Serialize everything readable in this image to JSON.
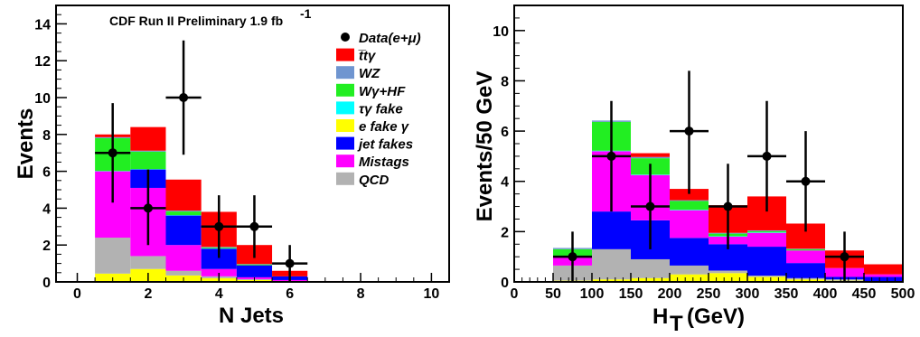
{
  "chart_data": [
    {
      "type": "bar",
      "stacked": true,
      "title": "CDF Run II Preliminary 1.9 fb",
      "title_superscript": "-1",
      "xlabel": "N Jets",
      "ylabel": "Events",
      "xlim": [
        -0.6,
        10.5
      ],
      "ylim": [
        0,
        15
      ],
      "xticks": [
        "0",
        "2",
        "4",
        "6",
        "8",
        "10"
      ],
      "yticks": [
        "0",
        "2",
        "4",
        "6",
        "8",
        "10",
        "12",
        "14"
      ],
      "bin_edges": [
        0.5,
        1.5,
        2.5,
        3.5,
        4.5,
        5.5,
        6.5,
        7.5,
        8.5,
        9.5,
        10.5
      ],
      "legend_position": "top-right",
      "legend_colors": [
        "#000000",
        "#ff0000",
        "#6f95d0",
        "#22ee22",
        "#00ffff",
        "#ffff00",
        "#0000ff",
        "#ff00ff",
        "#b2b2b2"
      ],
      "legend": [
        "Data(e+μ)",
        "t̅tγ",
        "WZ",
        "Wγ+HF",
        "τγ fake",
        "e fake γ",
        "jet fakes",
        "Mistags",
        "QCD"
      ],
      "series": [
        {
          "name": "e fake γ",
          "color": "#ffff00",
          "values": [
            0.45,
            0.7,
            0.35,
            0.2,
            0.1,
            0.05,
            0,
            0,
            0,
            0
          ]
        },
        {
          "name": "QCD",
          "color": "#b2b2b2",
          "values": [
            1.95,
            0.7,
            0.25,
            0.1,
            0.05,
            0.0,
            0,
            0,
            0,
            0
          ]
        },
        {
          "name": "Mistags",
          "color": "#ff00ff",
          "values": [
            3.6,
            3.7,
            1.4,
            0.4,
            0.1,
            0.05,
            0,
            0,
            0,
            0
          ]
        },
        {
          "name": "jet fakes",
          "color": "#0000ff",
          "values": [
            0,
            1.0,
            1.6,
            1.1,
            0.65,
            0.2,
            0,
            0,
            0,
            0
          ]
        },
        {
          "name": "τγ fake",
          "color": "#00ffff",
          "values": [
            0.02,
            0.02,
            0.02,
            0.02,
            0.0,
            0.0,
            0,
            0,
            0,
            0
          ]
        },
        {
          "name": "Wγ+HF",
          "color": "#22ee22",
          "values": [
            1.78,
            0.95,
            0.2,
            0.05,
            0.05,
            0.0,
            0,
            0,
            0,
            0
          ]
        },
        {
          "name": "WZ",
          "color": "#6f95d0",
          "values": [
            0.05,
            0.05,
            0.05,
            0.03,
            0.02,
            0.0,
            0,
            0,
            0,
            0
          ]
        },
        {
          "name": "t̅tγ",
          "color": "#ff0000",
          "values": [
            0.15,
            1.28,
            1.68,
            1.9,
            1.03,
            0.3,
            0.05,
            0.03,
            0.02,
            0.01
          ]
        }
      ],
      "data_points": [
        {
          "x": 1,
          "y": 7,
          "ylo": 4.3,
          "yhi": 9.7
        },
        {
          "x": 2,
          "y": 4,
          "ylo": 2.0,
          "yhi": 6.1
        },
        {
          "x": 3,
          "y": 10,
          "ylo": 6.9,
          "yhi": 13.1
        },
        {
          "x": 4,
          "y": 3,
          "ylo": 1.3,
          "yhi": 4.7
        },
        {
          "x": 5,
          "y": 3,
          "ylo": 1.3,
          "yhi": 4.7
        },
        {
          "x": 6,
          "y": 1,
          "ylo": 0.0,
          "yhi": 2.0
        }
      ]
    },
    {
      "type": "bar",
      "stacked": true,
      "xlabel": "H",
      "xlabel_subscript": "T",
      "xlabel_unit": "(GeV)",
      "ylabel": "Events/50 GeV",
      "xlim": [
        0,
        500
      ],
      "ylim": [
        0,
        11
      ],
      "xticks": [
        "0",
        "50",
        "100",
        "150",
        "200",
        "250",
        "300",
        "350",
        "400",
        "450",
        "500"
      ],
      "yticks": [
        "0",
        "2",
        "4",
        "6",
        "8",
        "10"
      ],
      "bin_edges": [
        50,
        100,
        150,
        200,
        250,
        300,
        350,
        400,
        450,
        500
      ],
      "series": [
        {
          "name": "e fake γ",
          "color": "#ffff00",
          "values": [
            0.05,
            0.1,
            0.15,
            0.3,
            0.35,
            0.2,
            0.1,
            0.05,
            0.0
          ]
        },
        {
          "name": "QCD",
          "color": "#b2b2b2",
          "values": [
            0.6,
            1.2,
            0.75,
            0.35,
            0.1,
            0.05,
            0.05,
            0.05,
            0.0
          ]
        },
        {
          "name": "jet fakes",
          "color": "#0000ff",
          "values": [
            0.0,
            1.5,
            1.55,
            1.1,
            1.05,
            1.15,
            0.6,
            0.1,
            0.2
          ]
        },
        {
          "name": "Mistags",
          "color": "#ff00ff",
          "values": [
            0.35,
            2.4,
            1.8,
            1.1,
            0.3,
            0.55,
            0.5,
            0.35,
            0.1
          ]
        },
        {
          "name": "τγ fake",
          "color": "#00ffff",
          "values": [
            0.0,
            0.02,
            0.02,
            0.02,
            0.02,
            0.02,
            0.0,
            0.0,
            0.0
          ]
        },
        {
          "name": "Wγ+HF",
          "color": "#22ee22",
          "values": [
            0.3,
            1.15,
            0.65,
            0.35,
            0.1,
            0.05,
            0.05,
            0.0,
            0.0
          ]
        },
        {
          "name": "WZ",
          "color": "#6f95d0",
          "values": [
            0.05,
            0.05,
            0.05,
            0.03,
            0.03,
            0.03,
            0.02,
            0.0,
            0.0
          ]
        },
        {
          "name": "t̅tγ",
          "color": "#ff0000",
          "values": [
            0.0,
            0.0,
            0.15,
            0.45,
            1.1,
            1.35,
            1.0,
            0.7,
            0.4
          ]
        }
      ],
      "data_points": [
        {
          "x": 75,
          "y": 1,
          "ylo": 0.0,
          "yhi": 2.0
        },
        {
          "x": 125,
          "y": 5,
          "ylo": 2.8,
          "yhi": 7.2
        },
        {
          "x": 175,
          "y": 3,
          "ylo": 1.3,
          "yhi": 4.7
        },
        {
          "x": 225,
          "y": 6,
          "ylo": 3.5,
          "yhi": 8.4
        },
        {
          "x": 275,
          "y": 3,
          "ylo": 1.3,
          "yhi": 4.7
        },
        {
          "x": 325,
          "y": 5,
          "ylo": 2.8,
          "yhi": 7.2
        },
        {
          "x": 375,
          "y": 4,
          "ylo": 2.0,
          "yhi": 6.0
        },
        {
          "x": 425,
          "y": 1,
          "ylo": 0.0,
          "yhi": 2.0
        }
      ]
    }
  ]
}
